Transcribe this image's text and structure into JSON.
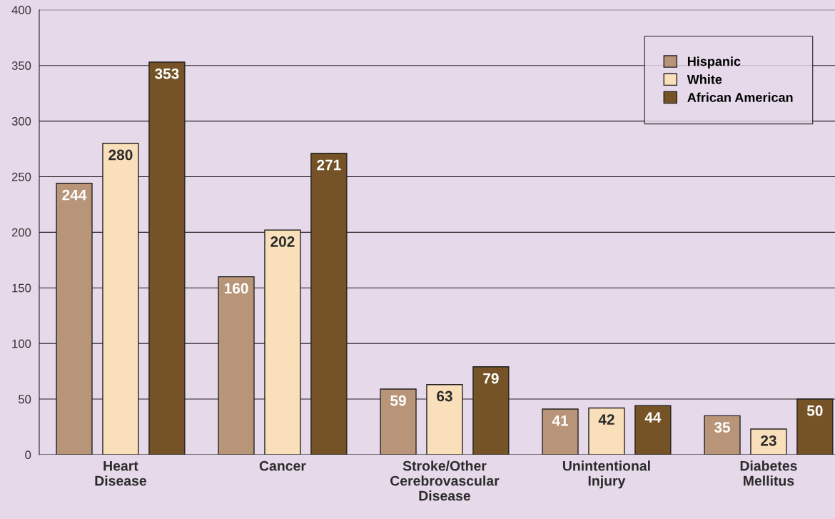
{
  "chart_data": {
    "type": "bar",
    "categories": [
      "Heart\nDisease",
      "Cancer",
      "Stroke/Other\nCerebrovascular\nDisease",
      "Unintentional\nInjury",
      "Diabetes\nMellitus"
    ],
    "series": [
      {
        "name": "Hispanic",
        "color": "#b89578",
        "values": [
          244,
          160,
          59,
          41,
          35
        ]
      },
      {
        "name": "White",
        "color": "#f9e0bb",
        "values": [
          280,
          202,
          63,
          42,
          23
        ]
      },
      {
        "name": "African American",
        "color": "#755326",
        "values": [
          353,
          271,
          79,
          44,
          50
        ]
      }
    ],
    "ylim": [
      0,
      400
    ],
    "yticks": [
      0,
      50,
      100,
      150,
      200,
      250,
      300,
      350,
      400
    ],
    "grid": "y",
    "legend": "top right",
    "data_labels": true
  }
}
